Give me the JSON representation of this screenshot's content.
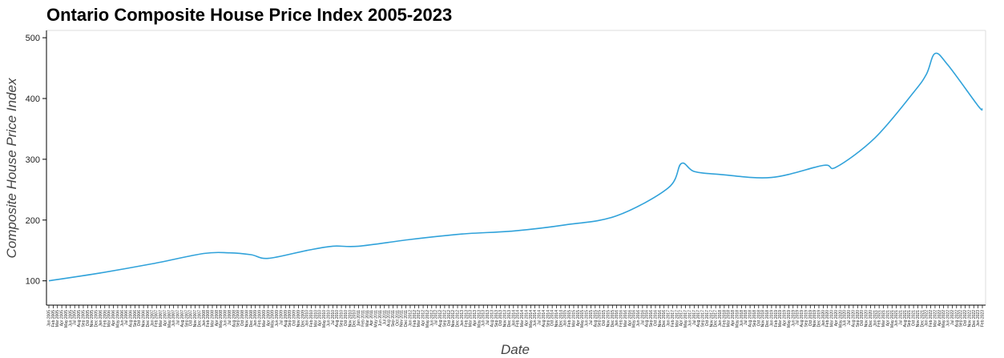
{
  "chart_data": {
    "type": "line",
    "title": "Ontario Composite House Price Index 2005-2023",
    "xlabel": "Date",
    "ylabel": "Composite House Price Index",
    "x_start": "Jan 2005",
    "x_end": "Feb 2023",
    "ylim": [
      60,
      512
    ],
    "yticks": [
      100,
      200,
      300,
      400,
      500
    ],
    "grid": false,
    "line_color": "#30a2da",
    "series": [
      {
        "values": [
          {
            "x": "Jan 2005",
            "y": 100
          },
          {
            "x": "Jan 2006",
            "y": 113
          },
          {
            "x": "Jan 2007",
            "y": 128
          },
          {
            "x": "Jan 2008",
            "y": 145
          },
          {
            "x": "Jul 2008",
            "y": 146
          },
          {
            "x": "Dec 2008",
            "y": 143
          },
          {
            "x": "Apr 2009",
            "y": 137
          },
          {
            "x": "Jan 2010",
            "y": 150
          },
          {
            "x": "Jul 2010",
            "y": 157
          },
          {
            "x": "Jan 2011",
            "y": 157
          },
          {
            "x": "Jan 2012",
            "y": 168
          },
          {
            "x": "Jan 2013",
            "y": 177
          },
          {
            "x": "Jan 2014",
            "y": 182
          },
          {
            "x": "Jan 2015",
            "y": 192
          },
          {
            "x": "Jan 2016",
            "y": 207
          },
          {
            "x": "Jan 2017",
            "y": 253
          },
          {
            "x": "Apr 2017",
            "y": 293
          },
          {
            "x": "Jul 2017",
            "y": 280
          },
          {
            "x": "Jan 2018",
            "y": 275
          },
          {
            "x": "Jan 2019",
            "y": 270
          },
          {
            "x": "Jan 2020",
            "y": 290
          },
          {
            "x": "Apr 2020",
            "y": 287
          },
          {
            "x": "Jan 2021",
            "y": 335
          },
          {
            "x": "Oct 2021",
            "y": 410
          },
          {
            "x": "Jan 2022",
            "y": 440
          },
          {
            "x": "Mar 2022",
            "y": 474
          },
          {
            "x": "Jun 2022",
            "y": 455
          },
          {
            "x": "Jan 2023",
            "y": 388
          },
          {
            "x": "Feb 2023",
            "y": 383
          }
        ]
      }
    ]
  }
}
